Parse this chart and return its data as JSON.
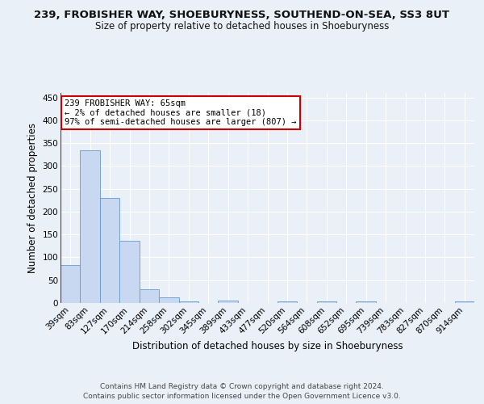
{
  "title1": "239, FROBISHER WAY, SHOEBURYNESS, SOUTHEND-ON-SEA, SS3 8UT",
  "title2": "Size of property relative to detached houses in Shoeburyness",
  "xlabel": "Distribution of detached houses by size in Shoeburyness",
  "ylabel": "Number of detached properties",
  "footer": "Contains HM Land Registry data © Crown copyright and database right 2024.\nContains public sector information licensed under the Open Government Licence v3.0.",
  "bin_labels": [
    "39sqm",
    "83sqm",
    "127sqm",
    "170sqm",
    "214sqm",
    "258sqm",
    "302sqm",
    "345sqm",
    "389sqm",
    "433sqm",
    "477sqm",
    "520sqm",
    "564sqm",
    "608sqm",
    "652sqm",
    "695sqm",
    "739sqm",
    "783sqm",
    "827sqm",
    "870sqm",
    "914sqm"
  ],
  "bar_heights": [
    83,
    335,
    230,
    137,
    30,
    12,
    4,
    0,
    5,
    0,
    0,
    4,
    0,
    3,
    0,
    4,
    0,
    0,
    0,
    0,
    4
  ],
  "bar_color": "#c8d8f0",
  "bar_edge_color": "#6699cc",
  "pct_smaller": 2,
  "n_smaller": 18,
  "pct_larger": 97,
  "n_larger": 807,
  "annotation_box_color": "#ffffff",
  "annotation_box_edge": "#cc0000",
  "red_line_color": "#cc0000",
  "ylim": [
    0,
    460
  ],
  "yticks": [
    0,
    50,
    100,
    150,
    200,
    250,
    300,
    350,
    400,
    450
  ],
  "bg_color": "#eaf0f8",
  "plot_bg_color": "#eaf0f8",
  "grid_color": "#ffffff",
  "title1_fontsize": 9.5,
  "title2_fontsize": 8.5,
  "axis_label_fontsize": 8.5,
  "tick_fontsize": 7.5,
  "footer_fontsize": 6.5,
  "annot_fontsize": 7.5
}
